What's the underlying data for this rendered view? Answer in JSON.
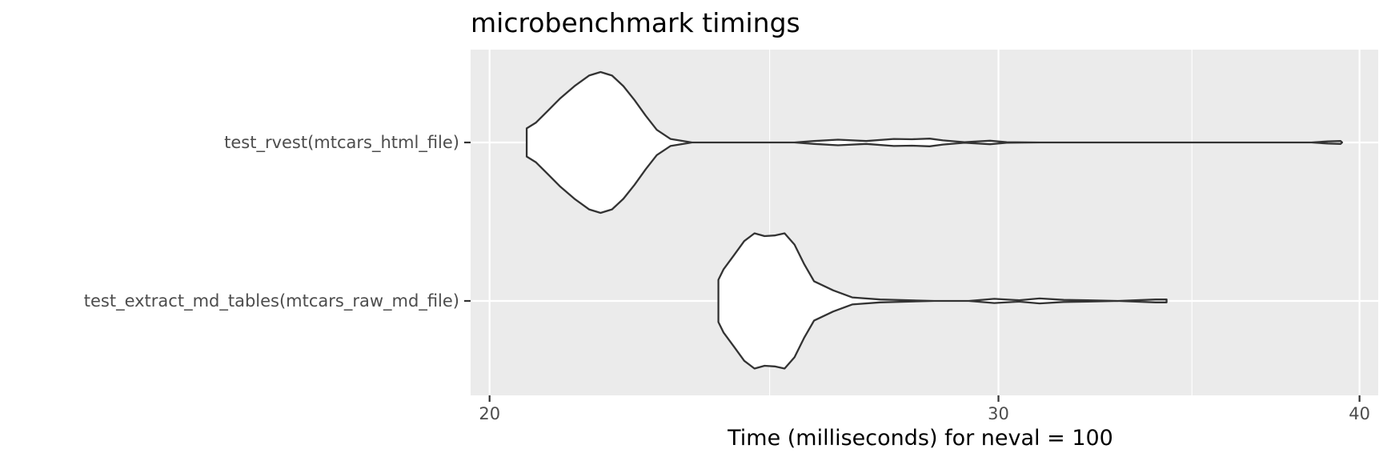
{
  "chart_data": {
    "type": "violin",
    "title": "microbenchmark timings",
    "xlabel": "Time (milliseconds) for neval = 100",
    "ylabel": "",
    "xscale": "log",
    "xlim": [
      19.7,
      40.6
    ],
    "x_ticks": [
      20,
      30,
      40
    ],
    "x_minor_ticks": [
      25,
      35
    ],
    "grid": true,
    "categories": [
      "test_extract_md_tables(mtcars_raw_md_file)",
      "test_rvest(mtcars_html_file)"
    ],
    "series": [
      {
        "category": "test_rvest(mtcars_html_file)",
        "density": [
          [
            20.6,
            0.0
          ],
          [
            20.6,
            0.1
          ],
          [
            20.6,
            0.2
          ],
          [
            20.75,
            0.28
          ],
          [
            20.95,
            0.45
          ],
          [
            21.15,
            0.62
          ],
          [
            21.4,
            0.8
          ],
          [
            21.65,
            0.95
          ],
          [
            21.85,
            1.0
          ],
          [
            22.05,
            0.95
          ],
          [
            22.25,
            0.8
          ],
          [
            22.45,
            0.6
          ],
          [
            22.65,
            0.38
          ],
          [
            22.85,
            0.18
          ],
          [
            23.1,
            0.05
          ],
          [
            23.5,
            0.0
          ],
          [
            25.5,
            0.0
          ],
          [
            25.9,
            0.02
          ],
          [
            26.4,
            0.04
          ],
          [
            27.0,
            0.02
          ],
          [
            27.6,
            0.05
          ],
          [
            28.0,
            0.045
          ],
          [
            28.4,
            0.055
          ],
          [
            28.7,
            0.03
          ],
          [
            29.2,
            0.005
          ],
          [
            29.8,
            0.025
          ],
          [
            30.2,
            0.005
          ],
          [
            31.0,
            0.0
          ],
          [
            38.5,
            0.0
          ],
          [
            39.0,
            0.015
          ],
          [
            39.4,
            0.02
          ],
          [
            39.45,
            0.0
          ]
        ]
      },
      {
        "category": "test_extract_md_tables(mtcars_raw_md_file)",
        "density": [
          [
            24.0,
            0.0
          ],
          [
            24.0,
            0.15
          ],
          [
            24.0,
            0.3
          ],
          [
            24.1,
            0.45
          ],
          [
            24.3,
            0.65
          ],
          [
            24.5,
            0.85
          ],
          [
            24.7,
            0.96
          ],
          [
            24.9,
            0.92
          ],
          [
            25.1,
            0.93
          ],
          [
            25.3,
            0.96
          ],
          [
            25.5,
            0.8
          ],
          [
            25.7,
            0.52
          ],
          [
            25.9,
            0.28
          ],
          [
            26.3,
            0.15
          ],
          [
            26.7,
            0.05
          ],
          [
            27.3,
            0.02
          ],
          [
            28.5,
            0.0
          ],
          [
            29.3,
            0.0
          ],
          [
            29.9,
            0.03
          ],
          [
            30.5,
            0.01
          ],
          [
            31.0,
            0.035
          ],
          [
            31.6,
            0.015
          ],
          [
            32.2,
            0.01
          ],
          [
            33.0,
            0.0
          ],
          [
            34.0,
            0.02
          ],
          [
            34.3,
            0.02
          ],
          [
            34.3,
            0.0
          ]
        ]
      }
    ]
  }
}
